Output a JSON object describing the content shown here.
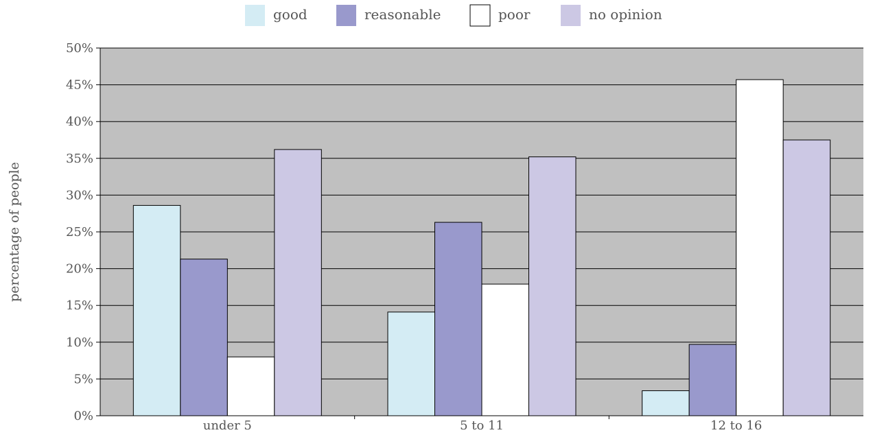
{
  "chart_data": {
    "type": "bar",
    "categories": [
      "under 5",
      "5 to 11",
      "12 to 16"
    ],
    "series": [
      {
        "name": "good",
        "values": [
          28.6,
          14.1,
          3.4
        ],
        "color": "#d4ecf4"
      },
      {
        "name": "reasonable",
        "values": [
          21.3,
          26.3,
          9.7
        ],
        "color": "#9999cc"
      },
      {
        "name": "poor",
        "values": [
          8.0,
          17.9,
          45.7
        ],
        "color": "#ffffff"
      },
      {
        "name": "no opinion",
        "values": [
          36.2,
          35.2,
          37.5
        ],
        "color": "#ccc8e4"
      }
    ],
    "ylabel": "percentage of people",
    "ylim": [
      0,
      50
    ],
    "yticks": [
      "0%",
      "5%",
      "10%",
      "15%",
      "20%",
      "25%",
      "30%",
      "35%",
      "40%",
      "45%",
      "50%"
    ],
    "grid": true,
    "legend_position": "top-center",
    "plot_background": "#c0c0c0"
  }
}
